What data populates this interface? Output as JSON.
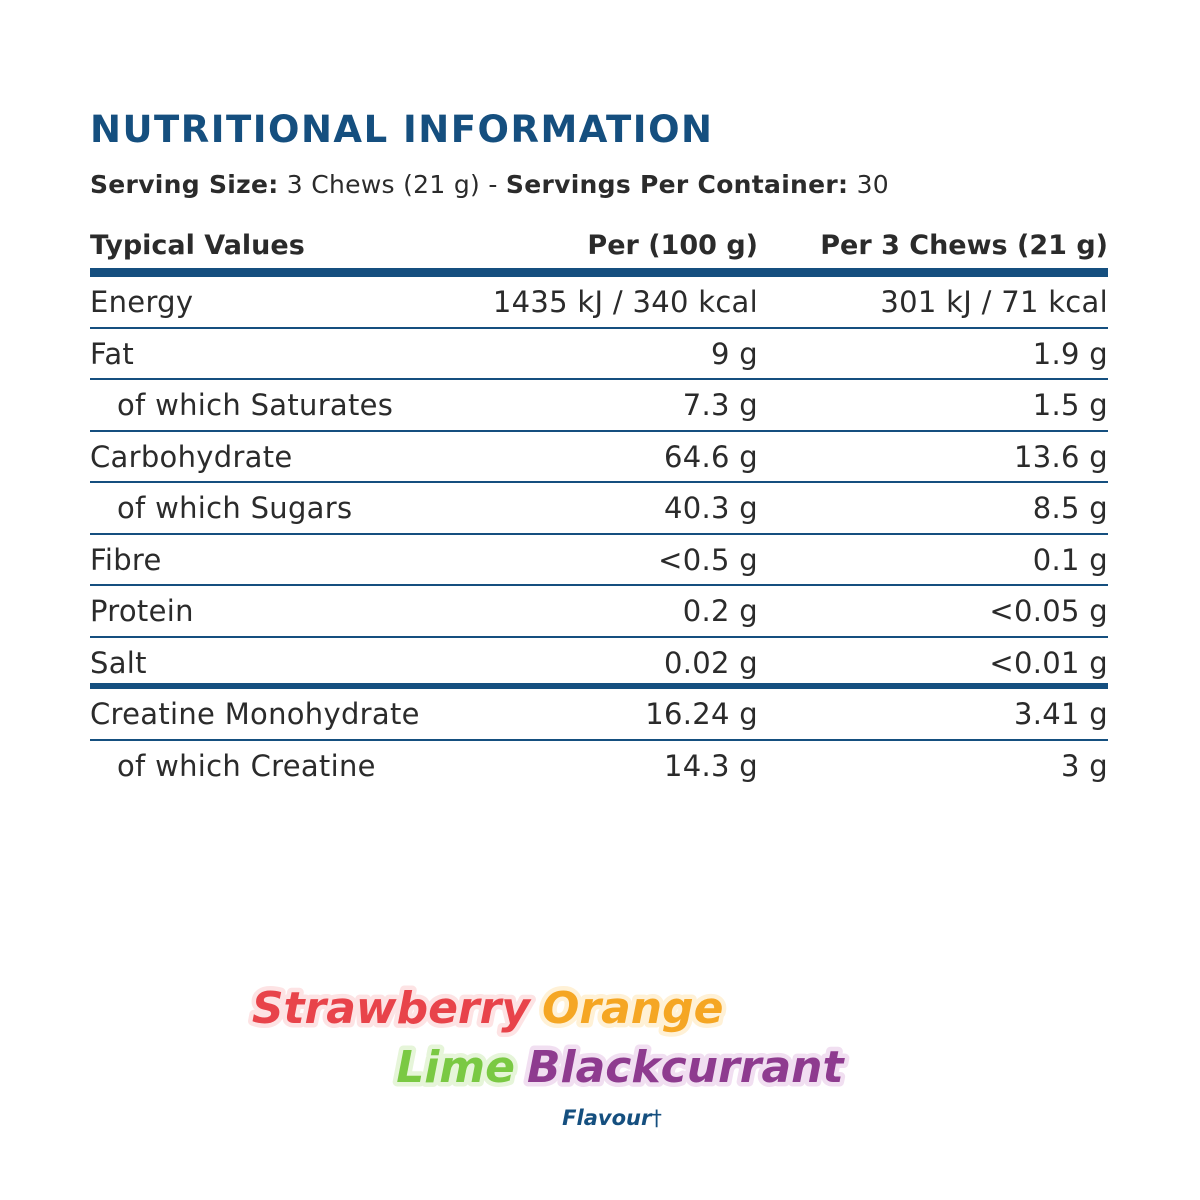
{
  "title": "NUTRITIONAL INFORMATION",
  "serving": {
    "size_label": "Serving Size:",
    "size_value": "3 Chews (21 g)",
    "separator": "-",
    "servings_label": "Servings Per Container:",
    "servings_value": "30"
  },
  "table": {
    "headers": [
      "Typical Values",
      "Per (100 g)",
      "Per 3 Chews (21 g)"
    ],
    "rows": [
      {
        "name": "Energy",
        "per100": "1435 kJ / 340 kcal",
        "perServing": "301 kJ / 71 kcal"
      },
      {
        "name": "Fat",
        "per100": "9 g",
        "perServing": "1.9 g"
      },
      {
        "name": "of which Saturates",
        "per100": "7.3 g",
        "perServing": "1.5 g"
      },
      {
        "name": "Carbohydrate",
        "per100": "64.6 g",
        "perServing": "13.6 g"
      },
      {
        "name": "of which Sugars",
        "per100": "40.3 g",
        "perServing": "8.5 g"
      },
      {
        "name": "Fibre",
        "per100": "<0.5 g",
        "perServing": "0.1 g"
      },
      {
        "name": "Protein",
        "per100": "0.2 g",
        "perServing": "<0.05 g"
      },
      {
        "name": "Salt",
        "per100": "0.02 g",
        "perServing": "<0.01 g"
      },
      {
        "name": "Creatine Monohydrate",
        "per100": "16.24 g",
        "perServing": "3.41 g"
      },
      {
        "name": "of which Creatine",
        "per100": "14.3 g",
        "perServing": "3 g"
      }
    ]
  },
  "flavour": {
    "words": [
      "Strawberry",
      "Orange",
      "Lime",
      "Blackcurrant"
    ],
    "label": "Flavour",
    "dagger": "†"
  },
  "colors": {
    "accent": "#154f7f",
    "text": "#2b2b2b",
    "strawberry": "#e8434a",
    "orange": "#f5a623",
    "lime": "#7ac943",
    "blackcurrant": "#8e3b8f",
    "flavour_label": "#154f7f"
  }
}
